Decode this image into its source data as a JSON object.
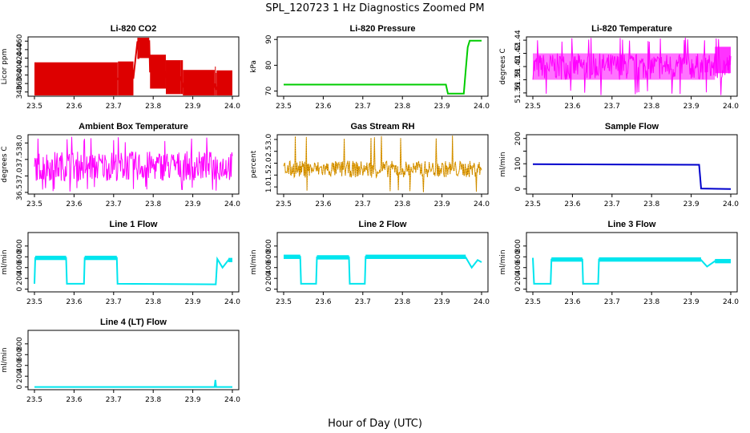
{
  "suptitle": "SPL_120723  1 Hz Diagnostics Zoomed PM",
  "xlabel": "Hour of Day (UTC)",
  "chart_data": [
    {
      "type": "line",
      "title": "Li-820 CO2",
      "ylabel": "Licor ppm",
      "color": "#dd0000",
      "xlim": [
        23.5,
        24.0
      ],
      "ylim": [
        330,
        470
      ],
      "yticks": [
        340,
        360,
        380,
        400,
        420,
        440,
        460
      ],
      "ytick_labels": [
        "340",
        "360",
        "380",
        "400",
        "420",
        "440",
        "460"
      ],
      "xticks": [
        23.5,
        23.6,
        23.7,
        23.8,
        23.9,
        24.0
      ],
      "xtick_labels": [
        "23.5",
        "23.6",
        "23.7",
        "23.8",
        "23.9",
        "24.0"
      ],
      "series": [
        {
          "name": "CO2",
          "x": [
            23.5,
            23.71,
            23.711,
            23.75,
            23.76,
            23.765,
            23.79,
            23.792,
            23.83,
            23.832,
            23.87,
            23.875,
            23.955,
            23.956,
            23.958,
            23.96,
            24.0
          ],
          "y": [
            370,
            370,
            372,
            373,
            458,
            460,
            460,
            388,
            388,
            375,
            375,
            352,
            352,
            360,
            345,
            351,
            351
          ]
        }
      ]
    },
    {
      "type": "line",
      "title": "Li-820 Pressure",
      "ylabel": "kPa",
      "color": "#00cc00",
      "xlim": [
        23.5,
        24.0
      ],
      "ylim": [
        68,
        91
      ],
      "yticks": [
        70,
        80,
        90
      ],
      "ytick_labels": [
        "70",
        "80",
        "90"
      ],
      "xticks": [
        23.5,
        23.6,
        23.7,
        23.8,
        23.9,
        24.0
      ],
      "xtick_labels": [
        "23.5",
        "23.6",
        "23.7",
        "23.8",
        "23.9",
        "24.0"
      ],
      "series": [
        {
          "name": "Pressure",
          "x": [
            23.5,
            23.91,
            23.915,
            23.955,
            23.96,
            23.965,
            23.97,
            24.0
          ],
          "y": [
            72.5,
            72.5,
            69,
            69,
            78,
            87,
            89.5,
            89.5
          ]
        }
      ]
    },
    {
      "type": "line",
      "title": "Li-820 Temperature",
      "ylabel": "degrees C",
      "color": "#ff00ff",
      "xlim": [
        23.5,
        24.0
      ],
      "ylim": [
        51.355,
        51.445
      ],
      "yticks": [
        51.36,
        51.4,
        51.44
      ],
      "ytick_labels": [
        "51.36",
        "51.40",
        "51.44"
      ],
      "yticks_minor": [
        51.38,
        51.42
      ],
      "ytick_labels_minor": [
        "51.38",
        "51.42"
      ],
      "xticks": [
        23.5,
        23.6,
        23.7,
        23.8,
        23.9,
        24.0
      ],
      "xtick_labels": [
        "23.5",
        "23.6",
        "23.7",
        "23.8",
        "23.9",
        "24.0"
      ],
      "band": {
        "x": [
          23.5,
          23.96,
          24.0
        ],
        "low": [
          51.38,
          51.38,
          51.39
        ],
        "high": [
          51.42,
          51.42,
          51.43
        ],
        "spike_low": 51.36,
        "spike_high": 51.44
      }
    },
    {
      "type": "line",
      "title": "Ambient Box Temperature",
      "ylabel": "degrees C",
      "color": "#ff00ff",
      "xlim": [
        23.5,
        24.0
      ],
      "ylim": [
        36.45,
        38.25
      ],
      "yticks": [
        36.5,
        37.5
      ],
      "ytick_labels": [
        "36.5",
        "37.5"
      ],
      "yticks_minor": [
        37.0,
        38.0
      ],
      "ytick_labels_minor": [
        "37.0",
        "38.0"
      ],
      "xticks": [
        23.5,
        23.6,
        23.7,
        23.8,
        23.9,
        24.0
      ],
      "xtick_labels": [
        "23.5",
        "23.6",
        "23.7",
        "23.8",
        "23.9",
        "24.0"
      ],
      "band": {
        "center": 37.3,
        "spread": 0.45,
        "spike_low": 36.6,
        "spike_high": 38.1
      }
    },
    {
      "type": "line",
      "title": "Gas Stream RH",
      "ylabel": "percent",
      "color": "#e8a000",
      "xlim": [
        23.5,
        24.0
      ],
      "ylim": [
        0.7,
        3.2
      ],
      "yticks": [
        1.0,
        1.5,
        2.0,
        2.5,
        3.0
      ],
      "ytick_labels": [
        "1.0",
        "1.5",
        "2.0",
        "2.5",
        "3.0"
      ],
      "xticks": [
        23.5,
        23.6,
        23.7,
        23.8,
        23.9,
        24.0
      ],
      "xtick_labels": [
        "23.5",
        "23.6",
        "23.7",
        "23.8",
        "23.9",
        "24.0"
      ],
      "band": {
        "center": 1.75,
        "spread": 0.35,
        "spike_low": 0.8,
        "spike_high": 3.1
      }
    },
    {
      "type": "line",
      "title": "Sample Flow",
      "ylabel": "ml/min",
      "color": "#0000cc",
      "xlim": [
        23.5,
        24.0
      ],
      "ylim": [
        -20,
        215
      ],
      "yticks": [
        0,
        100,
        200
      ],
      "ytick_labels": [
        "0",
        "100",
        "200"
      ],
      "yticks_minor": [
        50,
        150
      ],
      "xticks": [
        23.5,
        23.6,
        23.7,
        23.8,
        23.9,
        24.0
      ],
      "xtick_labels": [
        "23.5",
        "23.6",
        "23.7",
        "23.8",
        "23.9",
        "24.0"
      ],
      "series": [
        {
          "name": "Sample Flow",
          "x": [
            23.5,
            23.92,
            23.925,
            24.0
          ],
          "y": [
            98,
            96,
            2,
            0
          ]
        }
      ]
    },
    {
      "type": "line",
      "title": "Line 1 Flow",
      "ylabel": "ml/min",
      "color": "#00e5ee",
      "xlim": [
        23.5,
        24.0
      ],
      "ylim": [
        -50,
        1050
      ],
      "yticks": [
        0,
        200,
        400,
        600,
        800
      ],
      "ytick_labels": [
        "0",
        "200",
        "400",
        "600",
        "800"
      ],
      "xticks": [
        23.5,
        23.6,
        23.7,
        23.8,
        23.9,
        24.0
      ],
      "xtick_labels": [
        "23.5",
        "23.6",
        "23.7",
        "23.8",
        "23.9",
        "24.0"
      ],
      "series": [
        {
          "name": "Line 1",
          "x": [
            23.5,
            23.502,
            23.58,
            23.582,
            23.625,
            23.627,
            23.708,
            23.71,
            23.958,
            23.962,
            23.975,
            23.99,
            24.0
          ],
          "y": [
            100,
            580,
            580,
            100,
            100,
            580,
            580,
            100,
            90,
            560,
            400,
            540,
            540
          ]
        }
      ]
    },
    {
      "type": "line",
      "title": "Line 2 Flow",
      "ylabel": "ml/min",
      "color": "#00e5ee",
      "xlim": [
        23.5,
        24.0
      ],
      "ylim": [
        -50,
        1050
      ],
      "yticks": [
        0,
        200,
        400,
        600,
        800
      ],
      "ytick_labels": [
        "0",
        "200",
        "400",
        "600",
        "800"
      ],
      "xticks": [
        23.5,
        23.6,
        23.7,
        23.8,
        23.9,
        24.0
      ],
      "xtick_labels": [
        "23.5",
        "23.6",
        "23.7",
        "23.8",
        "23.9",
        "24.0"
      ],
      "series": [
        {
          "name": "Line 2",
          "x": [
            23.5,
            23.542,
            23.544,
            23.582,
            23.584,
            23.665,
            23.667,
            23.705,
            23.707,
            23.96,
            23.975,
            23.99,
            24.0
          ],
          "y": [
            600,
            600,
            100,
            100,
            590,
            590,
            100,
            100,
            600,
            590,
            400,
            540,
            500
          ]
        }
      ]
    },
    {
      "type": "line",
      "title": "Line 3 Flow",
      "ylabel": "ml/min",
      "color": "#00e5ee",
      "xlim": [
        23.5,
        24.0
      ],
      "ylim": [
        -50,
        1050
      ],
      "yticks": [
        0,
        200,
        400,
        600,
        800
      ],
      "ytick_labels": [
        "0",
        "200",
        "400",
        "600",
        "800"
      ],
      "xticks": [
        23.5,
        23.6,
        23.7,
        23.8,
        23.9,
        24.0
      ],
      "xtick_labels": [
        "23.5",
        "23.6",
        "23.7",
        "23.8",
        "23.9",
        "24.0"
      ],
      "series": [
        {
          "name": "Line 3",
          "x": [
            23.5,
            23.503,
            23.545,
            23.547,
            23.625,
            23.627,
            23.665,
            23.667,
            23.925,
            23.94,
            23.96,
            24.0
          ],
          "y": [
            580,
            100,
            100,
            550,
            550,
            100,
            100,
            550,
            540,
            420,
            520,
            500
          ]
        }
      ]
    },
    {
      "type": "line",
      "title": "Line 4 (LT) Flow",
      "ylabel": "ml/min",
      "color": "#00e5ee",
      "xlim": [
        23.5,
        24.0
      ],
      "ylim": [
        -50,
        1050
      ],
      "yticks": [
        0,
        200,
        400,
        600,
        800
      ],
      "ytick_labels": [
        "0",
        "200",
        "400",
        "600",
        "800"
      ],
      "xticks": [
        23.5,
        23.6,
        23.7,
        23.8,
        23.9,
        24.0
      ],
      "xtick_labels": [
        "23.5",
        "23.6",
        "23.7",
        "23.8",
        "23.9",
        "24.0"
      ],
      "series": [
        {
          "name": "Line 4",
          "x": [
            23.5,
            23.955,
            23.957,
            23.959,
            23.961,
            24.0
          ],
          "y": [
            0,
            0,
            130,
            0,
            0,
            0
          ]
        }
      ]
    }
  ]
}
